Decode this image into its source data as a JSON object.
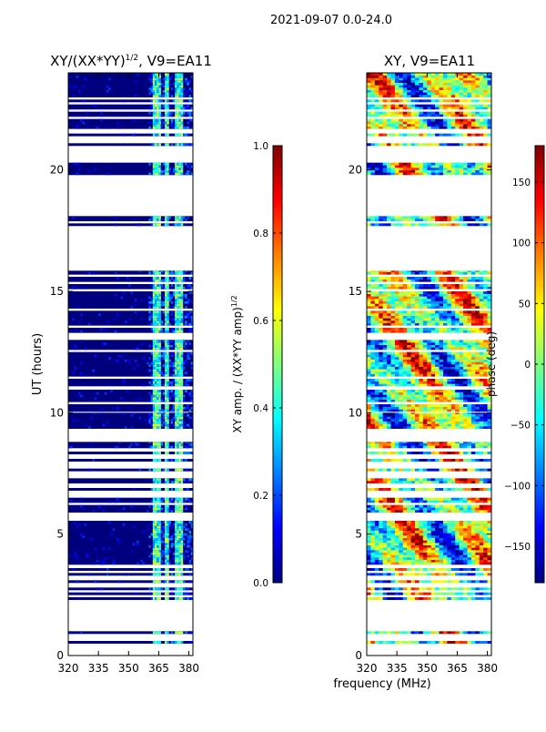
{
  "figure": {
    "suptitle": "2021-09-07 0.0-24.0",
    "shared_xlabel": "frequency (MHz)",
    "ylabel": "UT (hours)"
  },
  "colors": {
    "jet": [
      "#00007f",
      "#0000ff",
      "#007fff",
      "#00ffff",
      "#7fff7f",
      "#ffff00",
      "#ff7f00",
      "#ff0000",
      "#7f0000"
    ],
    "axis": "#000000",
    "background": "#ffffff"
  },
  "chart_data": [
    {
      "type": "heatmap",
      "name": "amplitude",
      "title": "XY/(XX*YY)",
      "title_superscript": "1/2",
      "title_suffix": ", V9=EA11",
      "xlabel": "frequency (MHz)",
      "ylabel": "UT (hours)",
      "xlim": [
        320,
        382
      ],
      "ylim": [
        0,
        24
      ],
      "xticks": [
        320,
        335,
        350,
        365,
        380
      ],
      "yticks": [
        0,
        5,
        10,
        15,
        20
      ],
      "colorbar": {
        "label": "XY amp. / (XX*YY amp)",
        "label_superscript": "1/2",
        "range": [
          0.0,
          1.0
        ],
        "ticks": [
          "0.0",
          "0.2",
          "0.4",
          "0.6",
          "0.8",
          "1.0"
        ]
      },
      "data_bands_ut": [
        [
          0.5,
          0.6
        ],
        [
          0.9,
          1.0
        ],
        [
          2.3,
          2.4
        ],
        [
          2.5,
          2.6
        ],
        [
          2.7,
          2.8
        ],
        [
          3.0,
          3.1
        ],
        [
          3.3,
          3.4
        ],
        [
          3.5,
          3.6
        ],
        [
          3.75,
          5.55
        ],
        [
          5.9,
          6.2
        ],
        [
          6.3,
          6.5
        ],
        [
          6.8,
          6.9
        ],
        [
          7.1,
          7.3
        ],
        [
          7.6,
          7.7
        ],
        [
          8.0,
          8.1
        ],
        [
          8.3,
          8.4
        ],
        [
          8.55,
          8.8
        ],
        [
          9.35,
          10.0
        ],
        [
          10.05,
          10.35
        ],
        [
          10.45,
          10.95
        ],
        [
          11.1,
          11.4
        ],
        [
          11.5,
          12.5
        ],
        [
          12.6,
          13.0
        ],
        [
          13.3,
          13.5
        ],
        [
          13.6,
          14.2
        ],
        [
          14.3,
          15.0
        ],
        [
          15.1,
          15.3
        ],
        [
          15.4,
          15.6
        ],
        [
          15.7,
          15.85
        ],
        [
          17.7,
          17.8
        ],
        [
          17.9,
          18.1
        ],
        [
          19.8,
          20.3
        ],
        [
          21.0,
          21.1
        ],
        [
          21.4,
          21.5
        ],
        [
          21.7,
          22.1
        ],
        [
          22.2,
          22.4
        ],
        [
          22.5,
          22.7
        ],
        [
          22.8,
          22.9
        ],
        [
          23.0,
          24.0
        ]
      ],
      "high_amplitude_mhz": [
        [
          362,
          366
        ],
        [
          368,
          370
        ],
        [
          373,
          377
        ]
      ]
    },
    {
      "type": "heatmap",
      "name": "phase",
      "title": "XY, V9=EA11",
      "xlabel": "frequency (MHz)",
      "xlim": [
        320,
        382
      ],
      "ylim": [
        0,
        24
      ],
      "xticks": [
        320,
        335,
        350,
        365,
        380
      ],
      "yticks": [
        0,
        5,
        10,
        15,
        20
      ],
      "colorbar": {
        "label": "phase (deg)",
        "range": [
          -180,
          180
        ],
        "ticks": [
          "−150",
          "−100",
          "−50",
          "0",
          "50",
          "100",
          "150"
        ]
      }
    }
  ]
}
